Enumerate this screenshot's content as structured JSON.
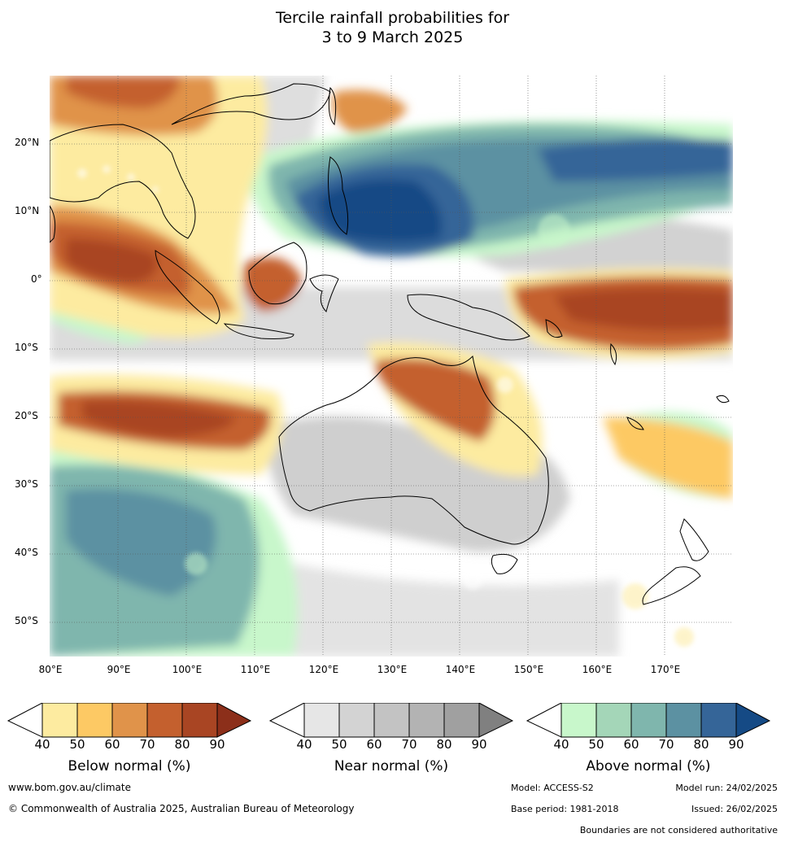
{
  "title": {
    "line1": "Tercile rainfall probabilities for",
    "line2": "3 to 9 March 2025"
  },
  "map": {
    "lat_labels": [
      "20°N",
      "10°N",
      "0°",
      "10°S",
      "20°S",
      "30°S",
      "40°S",
      "50°S"
    ],
    "lon_labels": [
      "80°E",
      "90°E",
      "100°E",
      "110°E",
      "120°E",
      "130°E",
      "140°E",
      "150°E",
      "160°E",
      "170°E"
    ],
    "extent": {
      "lon": [
        80,
        180
      ],
      "lat": [
        -55,
        30
      ]
    }
  },
  "colorbars": [
    {
      "title": "Below normal (%)",
      "ticks": [
        "40",
        "50",
        "60",
        "70",
        "80",
        "90"
      ],
      "colors": [
        "#ffffff",
        "#fdeba0",
        "#fdc964",
        "#e0934a",
        "#c4602e",
        "#a94523",
        "#8c2f1a"
      ]
    },
    {
      "title": "Near normal (%)",
      "ticks": [
        "40",
        "50",
        "60",
        "70",
        "80",
        "90"
      ],
      "colors": [
        "#ffffff",
        "#e6e6e6",
        "#d3d3d3",
        "#c3c3c3",
        "#b3b3b3",
        "#a0a0a0",
        "#808080"
      ]
    },
    {
      "title": "Above normal (%)",
      "ticks": [
        "40",
        "50",
        "60",
        "70",
        "80",
        "90"
      ],
      "colors": [
        "#ffffff",
        "#c8f7cb",
        "#a4d6b8",
        "#7fb6ad",
        "#5c91a2",
        "#356598",
        "#154a85"
      ]
    }
  ],
  "footer": {
    "url": "www.bom.gov.au/climate",
    "copyright": "© Commonwealth of Australia 2025, Australian Bureau of Meteorology",
    "model": "Model: ACCESS-S2",
    "base_period": "Base period: 1981-2018",
    "model_run": "Model run: 24/02/2025",
    "issued": "Issued: 26/02/2025",
    "disclaimer": "Boundaries are not considered authoritative"
  }
}
